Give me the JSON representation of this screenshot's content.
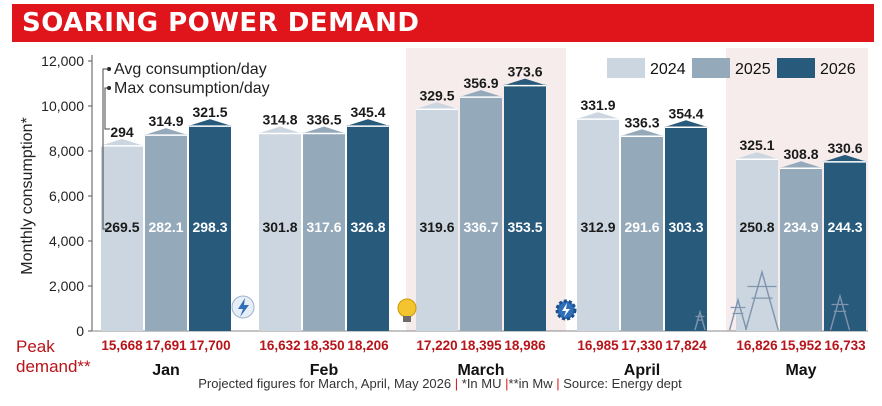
{
  "title": "SOARING POWER DEMAND",
  "footnote": {
    "projected": "Projected figures for March, April, May 2026",
    "mu_note": "*In MU",
    "mw_note": "**in Mw",
    "source": "Source: Energy dept",
    "separator": "|"
  },
  "colors": {
    "title_bg": "#e0151b",
    "series_2024": "#ccd6e0",
    "series_2025": "#94a9ba",
    "series_2026": "#285a7c",
    "highlight_band": "#f6ecec",
    "peak_text": "#b8141a"
  },
  "icons": [
    "lightning-bolt-icon",
    "light-bulb-icon",
    "gear-icon",
    "transmission-tower-icon"
  ],
  "chart_data": {
    "type": "bar",
    "title": "SOARING POWER DEMAND",
    "categories": [
      "Jan",
      "Feb",
      "March",
      "April",
      "May"
    ],
    "ylabel": "Monthly consumption*",
    "ylim": [
      0,
      12000
    ],
    "yticks": [
      "0",
      "2,000",
      "4,000",
      "6,000",
      "8,000",
      "10,000",
      "12,000"
    ],
    "legend": {
      "position": "top-right",
      "entries": [
        "2024",
        "2025",
        "2026"
      ]
    },
    "highlight_categories": [
      "March",
      "May"
    ],
    "annotations": [
      "Avg consumption/day",
      "Max consumption/day"
    ],
    "series": [
      {
        "name": "2024",
        "values": [
          8270,
          8820,
          9900,
          9460,
          7680
        ],
        "avg_per_day": [
          "269.5",
          "301.8",
          "319.6",
          "312.9",
          "250.8"
        ],
        "max_per_day": [
          "294",
          "314.8",
          "329.5",
          "331.9",
          "325.1"
        ],
        "peak_demand": [
          "15,668",
          "16,632",
          "17,220",
          "16,985",
          "16,826"
        ]
      },
      {
        "name": "2025",
        "values": [
          8750,
          8820,
          10440,
          8700,
          7280
        ],
        "avg_per_day": [
          "282.1",
          "317.6",
          "336.7",
          "291.6",
          "234.9"
        ],
        "max_per_day": [
          "314.9",
          "336.5",
          "356.9",
          "336.3",
          "308.8"
        ],
        "peak_demand": [
          "17,691",
          "18,350",
          "18,395",
          "17,330",
          "15,952"
        ]
      },
      {
        "name": "2026",
        "values": [
          9150,
          9150,
          10950,
          9100,
          7560
        ],
        "avg_per_day": [
          "298.3",
          "326.8",
          "353.5",
          "303.3",
          "244.3"
        ],
        "max_per_day": [
          "321.5",
          "345.4",
          "373.6",
          "354.4",
          "330.6"
        ],
        "peak_demand": [
          "17,700",
          "18,206",
          "18,986",
          "17,824",
          "16,733"
        ]
      }
    ],
    "peak_label": "Peak demand**"
  }
}
